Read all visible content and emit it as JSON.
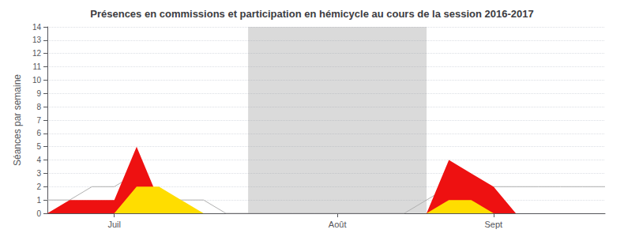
{
  "chart_data": {
    "type": "area",
    "title": "Présences en commissions et participation en hémicycle au cours de la session 2016-2017",
    "ylabel": "Séances par semaine",
    "x": [
      0,
      1,
      2,
      3,
      4,
      5,
      6,
      7,
      8,
      9,
      10,
      11,
      12,
      13,
      14,
      15,
      16,
      17,
      18,
      19,
      20,
      21,
      22,
      23,
      24,
      25
    ],
    "xlim": [
      0,
      25
    ],
    "xticks": [
      {
        "value": 3,
        "label": "Juil"
      },
      {
        "value": 13,
        "label": "Août"
      },
      {
        "value": 20,
        "label": "Sept"
      }
    ],
    "ylim": [
      0,
      14
    ],
    "yticks": [
      0,
      1,
      2,
      3,
      4,
      5,
      6,
      7,
      8,
      9,
      10,
      11,
      12,
      13,
      14
    ],
    "x_band": [
      9,
      17
    ],
    "grid": true,
    "series": [
      {
        "type": "line",
        "color": "#b0b0b0",
        "values": [
          1,
          1,
          2,
          2,
          3,
          1,
          1,
          1,
          0,
          0,
          0,
          0,
          0,
          0,
          0,
          0,
          0,
          1,
          2,
          1,
          2,
          2,
          2,
          2,
          2,
          2
        ]
      },
      {
        "type": "area",
        "color": "#ee1111",
        "values": [
          0,
          1,
          1,
          1,
          5,
          1,
          0,
          0,
          0,
          0,
          0,
          0,
          0,
          0,
          0,
          0,
          0,
          0,
          4,
          3,
          2,
          0,
          0,
          0,
          0,
          0
        ]
      },
      {
        "type": "area",
        "color": "#ffdd00",
        "values": [
          0,
          0,
          0,
          0,
          2,
          2,
          1,
          0,
          0,
          0,
          0,
          0,
          0,
          0,
          0,
          0,
          0,
          0,
          1,
          1,
          0,
          0,
          0,
          0,
          0,
          0
        ]
      }
    ]
  }
}
